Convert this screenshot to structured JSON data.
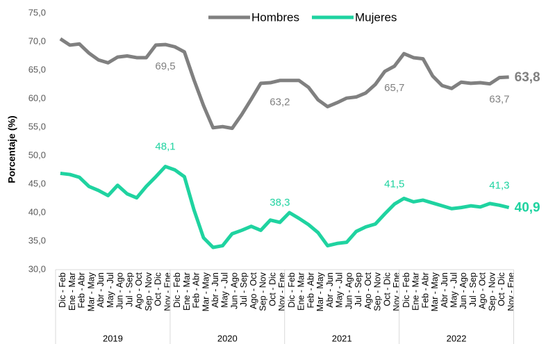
{
  "chart_data": {
    "type": "line",
    "y_label": "Porcentaje (%)",
    "categories": [
      "Dic - Feb",
      "Ene - Mar",
      "Feb - Abr",
      "Mar - May",
      "Abr - Jun",
      "May - Jul",
      "Jun - Ago",
      "Jul - Sep",
      "Ago - Oct",
      "Sep - Nov",
      "Oct - Dic",
      "Nov - Ene",
      "Dic - Feb",
      "Ene - Mar",
      "Feb - Abr",
      "Mar - May",
      "Abr - Jun",
      "May - Jul",
      "Jun - Ago",
      "Jul - Sep",
      "Ago - Oct",
      "Sep - Nov",
      "Oct - Dic",
      "Nov - Ene",
      "Dic - Feb",
      "Ene - Mar",
      "Feb - Abr",
      "Mar - May",
      "Abr - Jun",
      "May - Jul",
      "Jun - Ago",
      "Jul - Sep",
      "Ago - Oct",
      "Sep - Nov",
      "Oct - Dic",
      "Nov - Ene",
      "Dic - Feb",
      "Ene - Mar",
      "Feb - Abr",
      "Mar - May",
      "Abr - Jun",
      "May - Jul",
      "Jun - Ago",
      "Jul - Sep",
      "Ago - Oct",
      "Sep - Nov",
      "Oct - Dic",
      "Nov - Ene"
    ],
    "x_groups": [
      "2019",
      "2020",
      "2021",
      "2022"
    ],
    "series": [
      {
        "name": "Hombres",
        "color": "#808080",
        "values": [
          70.5,
          69.4,
          69.6,
          68.0,
          66.8,
          66.3,
          67.3,
          67.5,
          67.2,
          67.2,
          69.4,
          69.5,
          69.1,
          68.2,
          63.3,
          58.8,
          54.9,
          55.1,
          54.8,
          57.2,
          59.9,
          62.7,
          62.8,
          63.2,
          63.2,
          63.2,
          62.0,
          59.8,
          58.6,
          59.3,
          60.1,
          60.3,
          61.0,
          62.5,
          64.8,
          65.7,
          67.9,
          67.2,
          67.0,
          64.0,
          62.3,
          61.8,
          62.9,
          62.7,
          62.8,
          62.6,
          63.7,
          63.8
        ],
        "value_labels": [
          null,
          null,
          null,
          null,
          null,
          null,
          null,
          null,
          null,
          null,
          null,
          "69,5",
          null,
          null,
          null,
          null,
          null,
          null,
          null,
          null,
          null,
          null,
          null,
          "63,2",
          null,
          null,
          null,
          null,
          null,
          null,
          null,
          null,
          null,
          null,
          null,
          "65,7",
          null,
          null,
          null,
          null,
          null,
          null,
          null,
          null,
          null,
          null,
          "63,7",
          "63,8"
        ]
      },
      {
        "name": "Mujeres",
        "color": "#1fd3a0",
        "values": [
          46.9,
          46.7,
          46.2,
          44.6,
          43.9,
          43.0,
          44.8,
          43.3,
          42.6,
          44.6,
          46.3,
          48.1,
          47.5,
          46.3,
          40.5,
          35.6,
          33.9,
          34.2,
          36.3,
          36.9,
          37.6,
          36.9,
          38.7,
          38.3,
          40.0,
          39.0,
          37.9,
          36.5,
          34.2,
          34.6,
          34.8,
          36.7,
          37.5,
          38.0,
          39.8,
          41.5,
          42.5,
          41.9,
          42.2,
          41.7,
          41.2,
          40.7,
          40.9,
          41.2,
          41.0,
          41.6,
          41.3,
          40.9
        ],
        "value_labels": [
          null,
          null,
          null,
          null,
          null,
          null,
          null,
          null,
          null,
          null,
          null,
          "48,1",
          null,
          null,
          null,
          null,
          null,
          null,
          null,
          null,
          null,
          null,
          null,
          "38,3",
          null,
          null,
          null,
          null,
          null,
          null,
          null,
          null,
          null,
          null,
          null,
          "41,5",
          null,
          null,
          null,
          null,
          null,
          null,
          null,
          null,
          null,
          null,
          "41,3",
          "40,9"
        ]
      }
    ],
    "ylim": [
      30,
      75
    ],
    "yticks": [
      {
        "value": 30,
        "label": "30,0"
      },
      {
        "value": 35,
        "label": "35,0"
      },
      {
        "value": 40,
        "label": "40,0"
      },
      {
        "value": 45,
        "label": "45,0"
      },
      {
        "value": 50,
        "label": "50,0"
      },
      {
        "value": 55,
        "label": "55,0"
      },
      {
        "value": 60,
        "label": "60,0"
      },
      {
        "value": 65,
        "label": "65,0"
      },
      {
        "value": 70,
        "label": "70,0"
      },
      {
        "value": 75,
        "label": "75,0"
      }
    ],
    "grid": false,
    "legend": "top"
  }
}
